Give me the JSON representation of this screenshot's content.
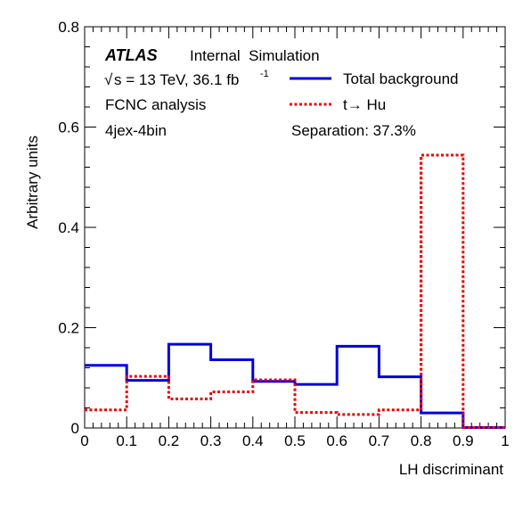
{
  "chart_data": {
    "type": "histogram",
    "xlabel": "LH discriminant",
    "ylabel": "Arbitrary units",
    "xlim": [
      0,
      1
    ],
    "ylim": [
      0,
      0.8
    ],
    "x_ticks": [
      "0",
      "0.1",
      "0.2",
      "0.3",
      "0.4",
      "0.5",
      "0.6",
      "0.7",
      "0.8",
      "0.9",
      "1"
    ],
    "y_ticks": [
      "0",
      "0.2",
      "0.4",
      "0.6",
      "0.8"
    ],
    "bin_edges": [
      0,
      0.1,
      0.2,
      0.3,
      0.4,
      0.5,
      0.6,
      0.7,
      0.8,
      0.9,
      1.0
    ],
    "series": [
      {
        "name": "Total background",
        "color": "#0000dd",
        "style": "solid",
        "values": [
          0.125,
          0.095,
          0.167,
          0.136,
          0.093,
          0.087,
          0.163,
          0.102,
          0.03,
          0.001
        ]
      },
      {
        "name": "t→ Hu",
        "color": "#ee0000",
        "style": "dotted",
        "values": [
          0.036,
          0.103,
          0.058,
          0.072,
          0.096,
          0.031,
          0.027,
          0.036,
          0.544,
          0.001
        ]
      }
    ],
    "annotations": {
      "atlas": "ATLAS",
      "atlas_status": "Internal  Simulation",
      "energy": "s = 13 TeV, 36.1 fb",
      "sqrt_symbol": "√",
      "lumi_exp": "-1",
      "analysis": "FCNC analysis",
      "region": "4jex-4bin",
      "separation": "Separation: 37.3%"
    },
    "legend_position": "top-right"
  }
}
